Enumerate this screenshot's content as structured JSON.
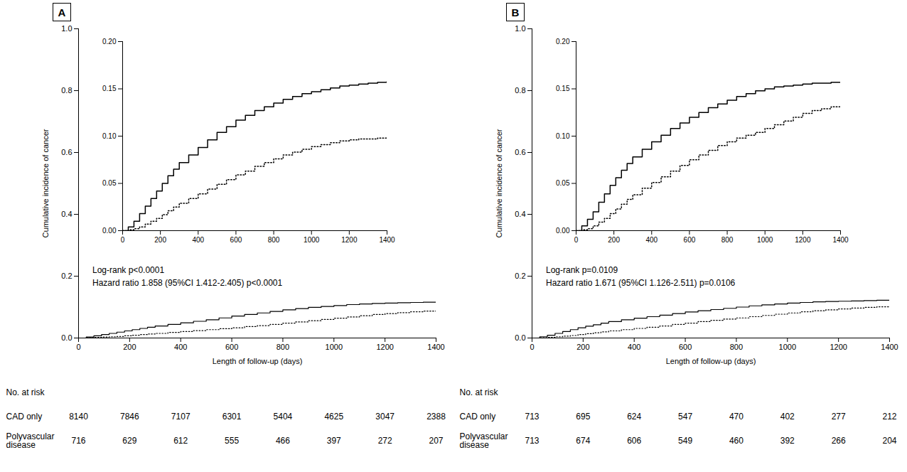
{
  "chart_data": [
    {
      "type": "step",
      "title": "A",
      "xlabel": "Length of follow-up (days)",
      "ylabel": "Cumulative incidence of cancer",
      "x": [
        0,
        30,
        60,
        90,
        120,
        150,
        180,
        210,
        240,
        270,
        300,
        350,
        400,
        450,
        500,
        550,
        600,
        650,
        700,
        750,
        800,
        850,
        900,
        950,
        1000,
        1050,
        1100,
        1150,
        1200,
        1250,
        1300,
        1350,
        1400
      ],
      "xlim": [
        0,
        1400
      ],
      "xticks": [
        0,
        200,
        400,
        600,
        800,
        1000,
        1200,
        1400
      ],
      "ylim": [
        0,
        1.0
      ],
      "yticks": [
        {
          "value": 0.0,
          "label": "0.0"
        },
        0.2,
        0.4,
        0.6,
        0.8,
        {
          "value": 1.0,
          "label": "1.0"
        }
      ],
      "grid": false,
      "series": [
        {
          "color": "#000000",
          "line_style": "solid",
          "values": [
            0,
            0.003,
            0.007,
            0.011,
            0.015,
            0.019,
            0.023,
            0.027,
            0.031,
            0.035,
            0.039,
            0.044,
            0.049,
            0.054,
            0.059,
            0.065,
            0.071,
            0.076,
            0.081,
            0.086,
            0.091,
            0.095,
            0.099,
            0.102,
            0.105,
            0.108,
            0.11,
            0.112,
            0.113,
            0.114,
            0.115,
            0.116,
            0.117
          ]
        },
        {
          "color": "#000000",
          "line_style": "dotted",
          "values": [
            0,
            0.001,
            0.002,
            0.003,
            0.004,
            0.005,
            0.007,
            0.009,
            0.011,
            0.013,
            0.015,
            0.018,
            0.021,
            0.024,
            0.027,
            0.03,
            0.033,
            0.037,
            0.04,
            0.044,
            0.048,
            0.052,
            0.056,
            0.06,
            0.064,
            0.068,
            0.072,
            0.076,
            0.079,
            0.082,
            0.085,
            0.087,
            0.089
          ]
        }
      ],
      "annotations": [
        "Log-rank p<0.0001",
        "Hazard ratio 1.858 (95%CI 1.412-2.405) p<0.0001"
      ],
      "risk_table": {
        "title": "No. at risk",
        "x": [
          0,
          200,
          400,
          600,
          800,
          1000,
          1200,
          1400
        ],
        "rows": [
          {
            "name": "CAD only",
            "values": [
              8140,
              7846,
              7107,
              6301,
              5404,
              4625,
              3047,
              2388
            ]
          },
          {
            "name": "Polyvascular\ndisease",
            "values": [
              716,
              629,
              612,
              555,
              466,
              397,
              272,
              207
            ]
          }
        ]
      },
      "inset": {
        "type": "step",
        "x": [
          0,
          30,
          60,
          90,
          120,
          150,
          180,
          210,
          240,
          270,
          300,
          350,
          400,
          450,
          500,
          550,
          600,
          650,
          700,
          750,
          800,
          850,
          900,
          950,
          1000,
          1050,
          1100,
          1150,
          1200,
          1250,
          1300,
          1350,
          1400
        ],
        "xlim": [
          0,
          1400
        ],
        "xticks": [
          0,
          200,
          400,
          600,
          800,
          1000,
          1200,
          1400
        ],
        "ylim": [
          0.0,
          0.2
        ],
        "yticks": [
          {
            "value": 0.0,
            "label": "0.00"
          },
          0.05,
          {
            "value": 0.1,
            "label": "0.10"
          },
          0.15,
          {
            "value": 0.2,
            "label": "0.20"
          }
        ],
        "grid": false,
        "series": [
          {
            "color": "#000000",
            "line_style": "solid",
            "values": [
              0,
              0.004,
              0.01,
              0.018,
              0.026,
              0.034,
              0.042,
              0.05,
              0.058,
              0.065,
              0.072,
              0.08,
              0.088,
              0.096,
              0.104,
              0.11,
              0.117,
              0.122,
              0.127,
              0.131,
              0.135,
              0.139,
              0.142,
              0.145,
              0.147,
              0.149,
              0.151,
              0.153,
              0.154,
              0.155,
              0.156,
              0.157,
              0.158
            ]
          },
          {
            "color": "#000000",
            "line_style": "dotted",
            "values": [
              0,
              0.001,
              0.002,
              0.004,
              0.007,
              0.01,
              0.013,
              0.017,
              0.021,
              0.025,
              0.029,
              0.034,
              0.039,
              0.044,
              0.049,
              0.054,
              0.059,
              0.063,
              0.068,
              0.072,
              0.076,
              0.08,
              0.083,
              0.086,
              0.089,
              0.091,
              0.093,
              0.095,
              0.096,
              0.097,
              0.097,
              0.098,
              0.098
            ]
          }
        ]
      }
    },
    {
      "type": "step",
      "title": "B",
      "xlabel": "Length of follow-up (days)",
      "ylabel": "Cumulative incidence of cancer",
      "x": [
        0,
        30,
        60,
        90,
        120,
        150,
        180,
        210,
        240,
        270,
        300,
        350,
        400,
        450,
        500,
        550,
        600,
        650,
        700,
        750,
        800,
        850,
        900,
        950,
        1000,
        1050,
        1100,
        1150,
        1200,
        1250,
        1300,
        1350,
        1400
      ],
      "xlim": [
        0,
        1400
      ],
      "xticks": [
        0,
        200,
        400,
        600,
        800,
        1000,
        1200,
        1400
      ],
      "ylim": [
        0,
        1.0
      ],
      "yticks": [
        {
          "value": 0.0,
          "label": "0.0"
        },
        0.2,
        0.4,
        0.6,
        0.8,
        {
          "value": 1.0,
          "label": "1.0"
        }
      ],
      "grid": false,
      "series": [
        {
          "color": "#000000",
          "line_style": "solid",
          "values": [
            0,
            0.004,
            0.009,
            0.015,
            0.021,
            0.027,
            0.033,
            0.038,
            0.043,
            0.048,
            0.053,
            0.059,
            0.064,
            0.069,
            0.074,
            0.079,
            0.084,
            0.088,
            0.092,
            0.096,
            0.1,
            0.104,
            0.107,
            0.11,
            0.113,
            0.115,
            0.117,
            0.118,
            0.119,
            0.12,
            0.121,
            0.122,
            0.122
          ]
        },
        {
          "color": "#000000",
          "line_style": "dotted",
          "values": [
            0,
            0.001,
            0.002,
            0.004,
            0.006,
            0.008,
            0.011,
            0.014,
            0.017,
            0.02,
            0.023,
            0.027,
            0.031,
            0.035,
            0.039,
            0.044,
            0.048,
            0.053,
            0.057,
            0.061,
            0.065,
            0.069,
            0.073,
            0.077,
            0.081,
            0.085,
            0.088,
            0.091,
            0.094,
            0.097,
            0.099,
            0.101,
            0.103
          ]
        }
      ],
      "annotations": [
        "Log-rank p=0.0109",
        "Hazard ratio 1.671 (95%CI 1.126-2.511) p=0.0106"
      ],
      "risk_table": {
        "title": "No. at risk",
        "x": [
          0,
          200,
          400,
          600,
          800,
          1000,
          1200,
          1400
        ],
        "rows": [
          {
            "name": "CAD only",
            "values": [
              713,
              695,
              624,
              547,
              470,
              402,
              277,
              212
            ]
          },
          {
            "name": "Polyvascular\ndisease",
            "values": [
              713,
              674,
              606,
              549,
              460,
              392,
              266,
              204
            ]
          }
        ]
      },
      "inset": {
        "type": "step",
        "x": [
          0,
          30,
          60,
          90,
          120,
          150,
          180,
          210,
          240,
          270,
          300,
          350,
          400,
          450,
          500,
          550,
          600,
          650,
          700,
          750,
          800,
          850,
          900,
          950,
          1000,
          1050,
          1100,
          1150,
          1200,
          1250,
          1300,
          1350,
          1400
        ],
        "xlim": [
          0,
          1400
        ],
        "xticks": [
          0,
          200,
          400,
          600,
          800,
          1000,
          1200,
          1400
        ],
        "ylim": [
          0.0,
          0.2
        ],
        "yticks": [
          {
            "value": 0.0,
            "label": "0.00"
          },
          0.05,
          {
            "value": 0.1,
            "label": "0.10"
          },
          0.15,
          {
            "value": 0.2,
            "label": "0.20"
          }
        ],
        "grid": false,
        "series": [
          {
            "color": "#000000",
            "line_style": "solid",
            "values": [
              0,
              0.005,
              0.012,
              0.02,
              0.03,
              0.039,
              0.048,
              0.056,
              0.064,
              0.071,
              0.078,
              0.086,
              0.094,
              0.101,
              0.108,
              0.114,
              0.12,
              0.125,
              0.13,
              0.134,
              0.138,
              0.142,
              0.145,
              0.148,
              0.15,
              0.152,
              0.153,
              0.154,
              0.155,
              0.156,
              0.156,
              0.157,
              0.157
            ]
          },
          {
            "color": "#000000",
            "line_style": "dotted",
            "values": [
              0,
              0.001,
              0.002,
              0.005,
              0.009,
              0.013,
              0.018,
              0.023,
              0.028,
              0.033,
              0.038,
              0.045,
              0.051,
              0.057,
              0.063,
              0.069,
              0.075,
              0.08,
              0.085,
              0.09,
              0.094,
              0.098,
              0.101,
              0.104,
              0.108,
              0.112,
              0.116,
              0.12,
              0.124,
              0.127,
              0.129,
              0.131,
              0.132
            ]
          }
        ]
      }
    }
  ]
}
